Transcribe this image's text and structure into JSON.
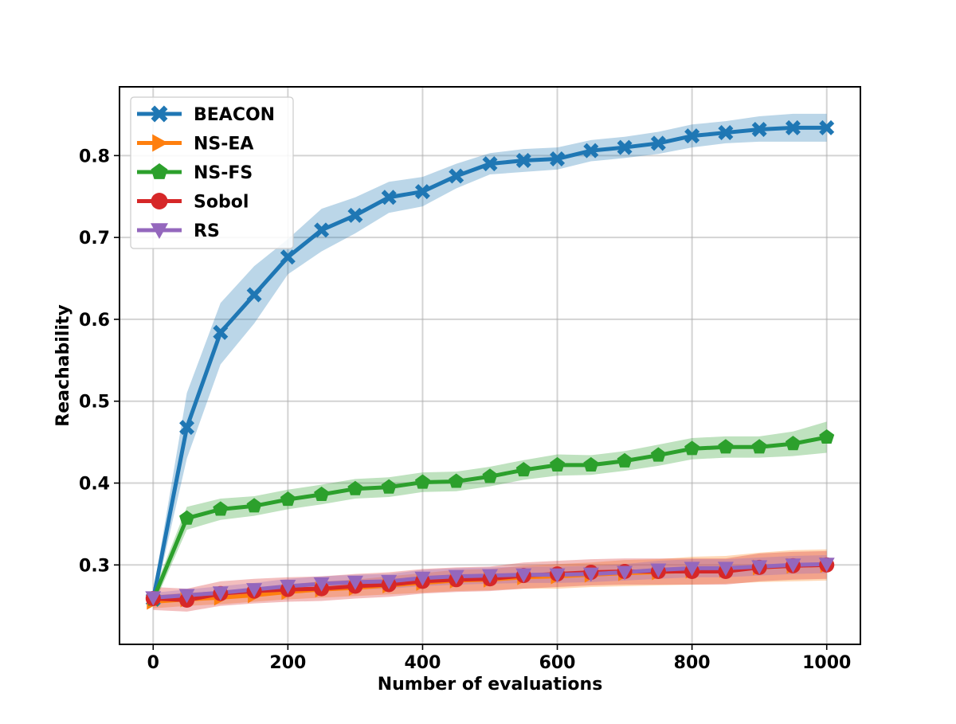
{
  "chart_data": {
    "type": "line",
    "title": "",
    "xlabel": "Number of evaluations",
    "ylabel": "Reachability",
    "xlim": [
      -50,
      1050
    ],
    "ylim": [
      0.203,
      0.884
    ],
    "xticks": [
      0,
      200,
      400,
      600,
      800,
      1000
    ],
    "yticks": [
      0.3,
      0.4,
      0.5,
      0.6,
      0.7,
      0.8
    ],
    "xtick_labels": [
      "0",
      "200",
      "400",
      "600",
      "800",
      "1000"
    ],
    "ytick_labels": [
      "0.3",
      "0.4",
      "0.5",
      "0.6",
      "0.7",
      "0.8"
    ],
    "grid": true,
    "legend_position": "upper-left",
    "x": [
      0,
      50,
      100,
      150,
      200,
      250,
      300,
      350,
      400,
      450,
      500,
      550,
      600,
      650,
      700,
      750,
      800,
      850,
      900,
      950,
      1000
    ],
    "series": [
      {
        "name": "BEACON",
        "color": "#1f77b4",
        "marker": "x",
        "values": [
          0.258,
          0.468,
          0.584,
          0.63,
          0.676,
          0.709,
          0.727,
          0.749,
          0.756,
          0.775,
          0.79,
          0.794,
          0.796,
          0.806,
          0.81,
          0.815,
          0.824,
          0.828,
          0.832,
          0.834,
          0.834
        ],
        "lower": [
          0.25,
          0.43,
          0.545,
          0.595,
          0.655,
          0.683,
          0.705,
          0.73,
          0.738,
          0.76,
          0.777,
          0.78,
          0.783,
          0.793,
          0.797,
          0.802,
          0.81,
          0.815,
          0.817,
          0.817,
          0.817
        ],
        "upper": [
          0.266,
          0.51,
          0.62,
          0.665,
          0.698,
          0.735,
          0.749,
          0.768,
          0.774,
          0.79,
          0.803,
          0.808,
          0.81,
          0.819,
          0.823,
          0.829,
          0.838,
          0.842,
          0.848,
          0.851,
          0.851
        ]
      },
      {
        "name": "NS-EA",
        "color": "#ff7f0e",
        "marker": "triangle-right",
        "values": [
          0.255,
          0.258,
          0.26,
          0.263,
          0.267,
          0.27,
          0.272,
          0.275,
          0.278,
          0.281,
          0.282,
          0.285,
          0.286,
          0.288,
          0.29,
          0.291,
          0.293,
          0.294,
          0.297,
          0.299,
          0.3
        ],
        "lower": [
          0.247,
          0.25,
          0.252,
          0.255,
          0.258,
          0.26,
          0.262,
          0.264,
          0.266,
          0.268,
          0.269,
          0.271,
          0.271,
          0.273,
          0.274,
          0.275,
          0.276,
          0.277,
          0.279,
          0.28,
          0.281
        ],
        "upper": [
          0.263,
          0.266,
          0.268,
          0.271,
          0.276,
          0.28,
          0.282,
          0.286,
          0.29,
          0.294,
          0.295,
          0.299,
          0.301,
          0.303,
          0.306,
          0.307,
          0.31,
          0.311,
          0.315,
          0.318,
          0.319
        ]
      },
      {
        "name": "NS-FS",
        "color": "#2ca02c",
        "marker": "pentagon",
        "values": [
          0.258,
          0.357,
          0.368,
          0.372,
          0.38,
          0.386,
          0.393,
          0.395,
          0.401,
          0.402,
          0.408,
          0.416,
          0.422,
          0.422,
          0.427,
          0.434,
          0.442,
          0.444,
          0.444,
          0.448,
          0.456
        ],
        "lower": [
          0.25,
          0.343,
          0.355,
          0.36,
          0.368,
          0.374,
          0.381,
          0.383,
          0.389,
          0.39,
          0.396,
          0.404,
          0.409,
          0.41,
          0.415,
          0.421,
          0.429,
          0.431,
          0.431,
          0.433,
          0.437
        ],
        "upper": [
          0.266,
          0.371,
          0.381,
          0.384,
          0.392,
          0.398,
          0.405,
          0.407,
          0.413,
          0.414,
          0.42,
          0.428,
          0.435,
          0.434,
          0.439,
          0.447,
          0.455,
          0.457,
          0.457,
          0.463,
          0.475
        ]
      },
      {
        "name": "Sobol",
        "color": "#d62728",
        "marker": "circle",
        "values": [
          0.259,
          0.257,
          0.265,
          0.268,
          0.27,
          0.271,
          0.274,
          0.276,
          0.28,
          0.282,
          0.283,
          0.287,
          0.289,
          0.291,
          0.292,
          0.292,
          0.292,
          0.292,
          0.297,
          0.299,
          0.3
        ],
        "lower": [
          0.245,
          0.243,
          0.25,
          0.253,
          0.255,
          0.256,
          0.259,
          0.261,
          0.265,
          0.267,
          0.268,
          0.271,
          0.273,
          0.275,
          0.276,
          0.276,
          0.276,
          0.276,
          0.28,
          0.282,
          0.283
        ],
        "upper": [
          0.273,
          0.271,
          0.28,
          0.283,
          0.285,
          0.286,
          0.289,
          0.291,
          0.295,
          0.297,
          0.298,
          0.303,
          0.305,
          0.307,
          0.308,
          0.308,
          0.308,
          0.308,
          0.314,
          0.316,
          0.317
        ]
      },
      {
        "name": "RS",
        "color": "#9467bd",
        "marker": "triangle-down",
        "values": [
          0.26,
          0.263,
          0.266,
          0.27,
          0.274,
          0.277,
          0.279,
          0.28,
          0.284,
          0.286,
          0.287,
          0.288,
          0.288,
          0.289,
          0.291,
          0.294,
          0.296,
          0.296,
          0.298,
          0.3,
          0.301
        ],
        "lower": [
          0.254,
          0.256,
          0.258,
          0.262,
          0.265,
          0.268,
          0.27,
          0.271,
          0.274,
          0.276,
          0.277,
          0.278,
          0.278,
          0.279,
          0.281,
          0.283,
          0.285,
          0.285,
          0.287,
          0.289,
          0.29
        ],
        "upper": [
          0.266,
          0.27,
          0.274,
          0.278,
          0.283,
          0.286,
          0.288,
          0.289,
          0.294,
          0.296,
          0.297,
          0.298,
          0.298,
          0.299,
          0.301,
          0.305,
          0.307,
          0.307,
          0.309,
          0.311,
          0.312
        ]
      }
    ]
  }
}
